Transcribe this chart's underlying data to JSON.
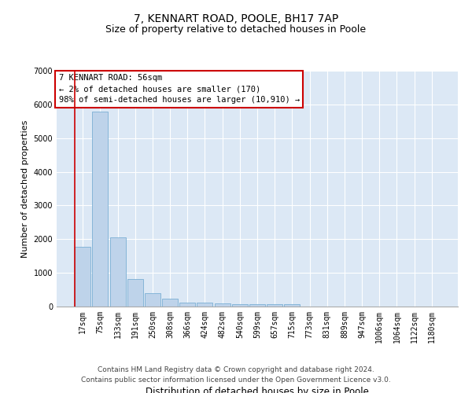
{
  "title": "7, KENNART ROAD, POOLE, BH17 7AP",
  "subtitle": "Size of property relative to detached houses in Poole",
  "xlabel": "Distribution of detached houses by size in Poole",
  "ylabel": "Number of detached properties",
  "categories": [
    "17sqm",
    "75sqm",
    "133sqm",
    "191sqm",
    "250sqm",
    "308sqm",
    "366sqm",
    "424sqm",
    "482sqm",
    "540sqm",
    "599sqm",
    "657sqm",
    "715sqm",
    "773sqm",
    "831sqm",
    "889sqm",
    "947sqm",
    "1006sqm",
    "1064sqm",
    "1122sqm",
    "1180sqm"
  ],
  "values": [
    1780,
    5780,
    2060,
    820,
    390,
    230,
    120,
    115,
    90,
    75,
    70,
    65,
    60,
    0,
    0,
    0,
    0,
    0,
    0,
    0,
    0
  ],
  "bar_color": "#bed3ea",
  "bar_edge_color": "#7aafd4",
  "highlight_color": "#cc0000",
  "annotation_text": "7 KENNART ROAD: 56sqm\n← 2% of detached houses are smaller (170)\n98% of semi-detached houses are larger (10,910) →",
  "annotation_box_color": "#ffffff",
  "annotation_box_edge_color": "#cc0000",
  "bg_color": "#dce8f5",
  "grid_color": "#ffffff",
  "ylim": [
    0,
    7000
  ],
  "yticks": [
    0,
    1000,
    2000,
    3000,
    4000,
    5000,
    6000,
    7000
  ],
  "footer": "Contains HM Land Registry data © Crown copyright and database right 2024.\nContains public sector information licensed under the Open Government Licence v3.0.",
  "title_fontsize": 10,
  "subtitle_fontsize": 9,
  "xlabel_fontsize": 8.5,
  "ylabel_fontsize": 8,
  "annot_fontsize": 7.5,
  "tick_fontsize": 7,
  "footer_fontsize": 6.5
}
